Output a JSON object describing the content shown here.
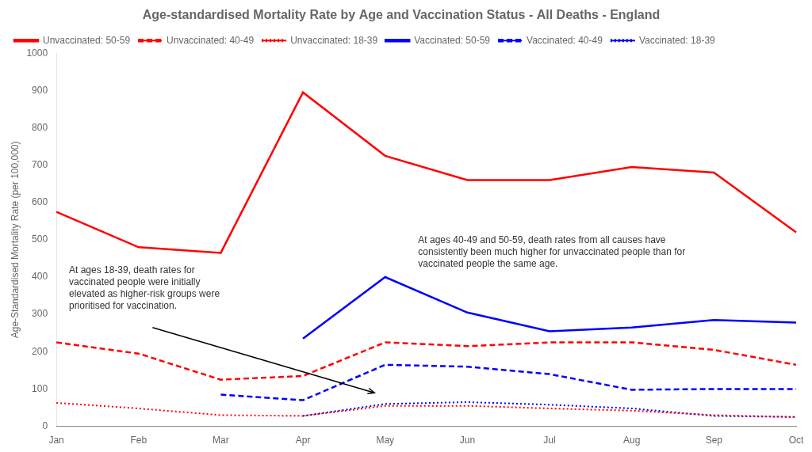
{
  "chart_data": {
    "type": "line",
    "title": "Age-standardised Mortality Rate by Age and Vaccination Status - All Deaths - England",
    "ylabel": "Age-Standardised Mortality Rate (per 100,000)",
    "categories": [
      "Jan",
      "Feb",
      "Mar",
      "Apr",
      "May",
      "Jun",
      "Jul",
      "Aug",
      "Sep",
      "Oct"
    ],
    "series": [
      {
        "name": "Unvaccinated: 50-59",
        "color": "#ff0000",
        "line_style": "solid",
        "values": [
          575,
          480,
          465,
          895,
          725,
          660,
          660,
          695,
          680,
          520
        ]
      },
      {
        "name": "Unvaccinated: 40-49",
        "color": "#ff0000",
        "line_style": "dashed",
        "values": [
          225,
          195,
          125,
          135,
          225,
          215,
          225,
          225,
          205,
          165
        ]
      },
      {
        "name": "Unvaccinated: 18-39",
        "color": "#ff0000",
        "line_style": "dotted",
        "values": [
          63,
          48,
          30,
          28,
          55,
          55,
          48,
          42,
          30,
          25
        ]
      },
      {
        "name": "Vaccinated: 50-59",
        "color": "#0000ff",
        "line_style": "solid",
        "values": [
          null,
          null,
          null,
          235,
          400,
          305,
          255,
          265,
          285,
          278
        ]
      },
      {
        "name": "Vaccinated: 40-49",
        "color": "#0000ff",
        "line_style": "dashed",
        "values": [
          null,
          null,
          85,
          70,
          165,
          160,
          140,
          98,
          100,
          100
        ]
      },
      {
        "name": "Vaccinated: 18-39",
        "color": "#0000ff",
        "line_style": "dotted",
        "values": [
          null,
          null,
          null,
          28,
          60,
          65,
          58,
          48,
          28,
          25
        ]
      }
    ],
    "annotations": [
      "At ages 40-49 and 50-59, death rates from all causes have\nconsistently been much higher for unvaccinated people than for\nvaccinated people the same age.",
      "At ages 18-39, death rates for\nvaccinated people were initially\nelevated as higher-risk groups were\nprioritised for vaccination."
    ],
    "ylim": [
      0,
      1000
    ],
    "yticks": [
      0,
      100,
      200,
      300,
      400,
      500,
      600,
      700,
      800,
      900,
      1000
    ],
    "grid": false,
    "legend": "upper left"
  }
}
